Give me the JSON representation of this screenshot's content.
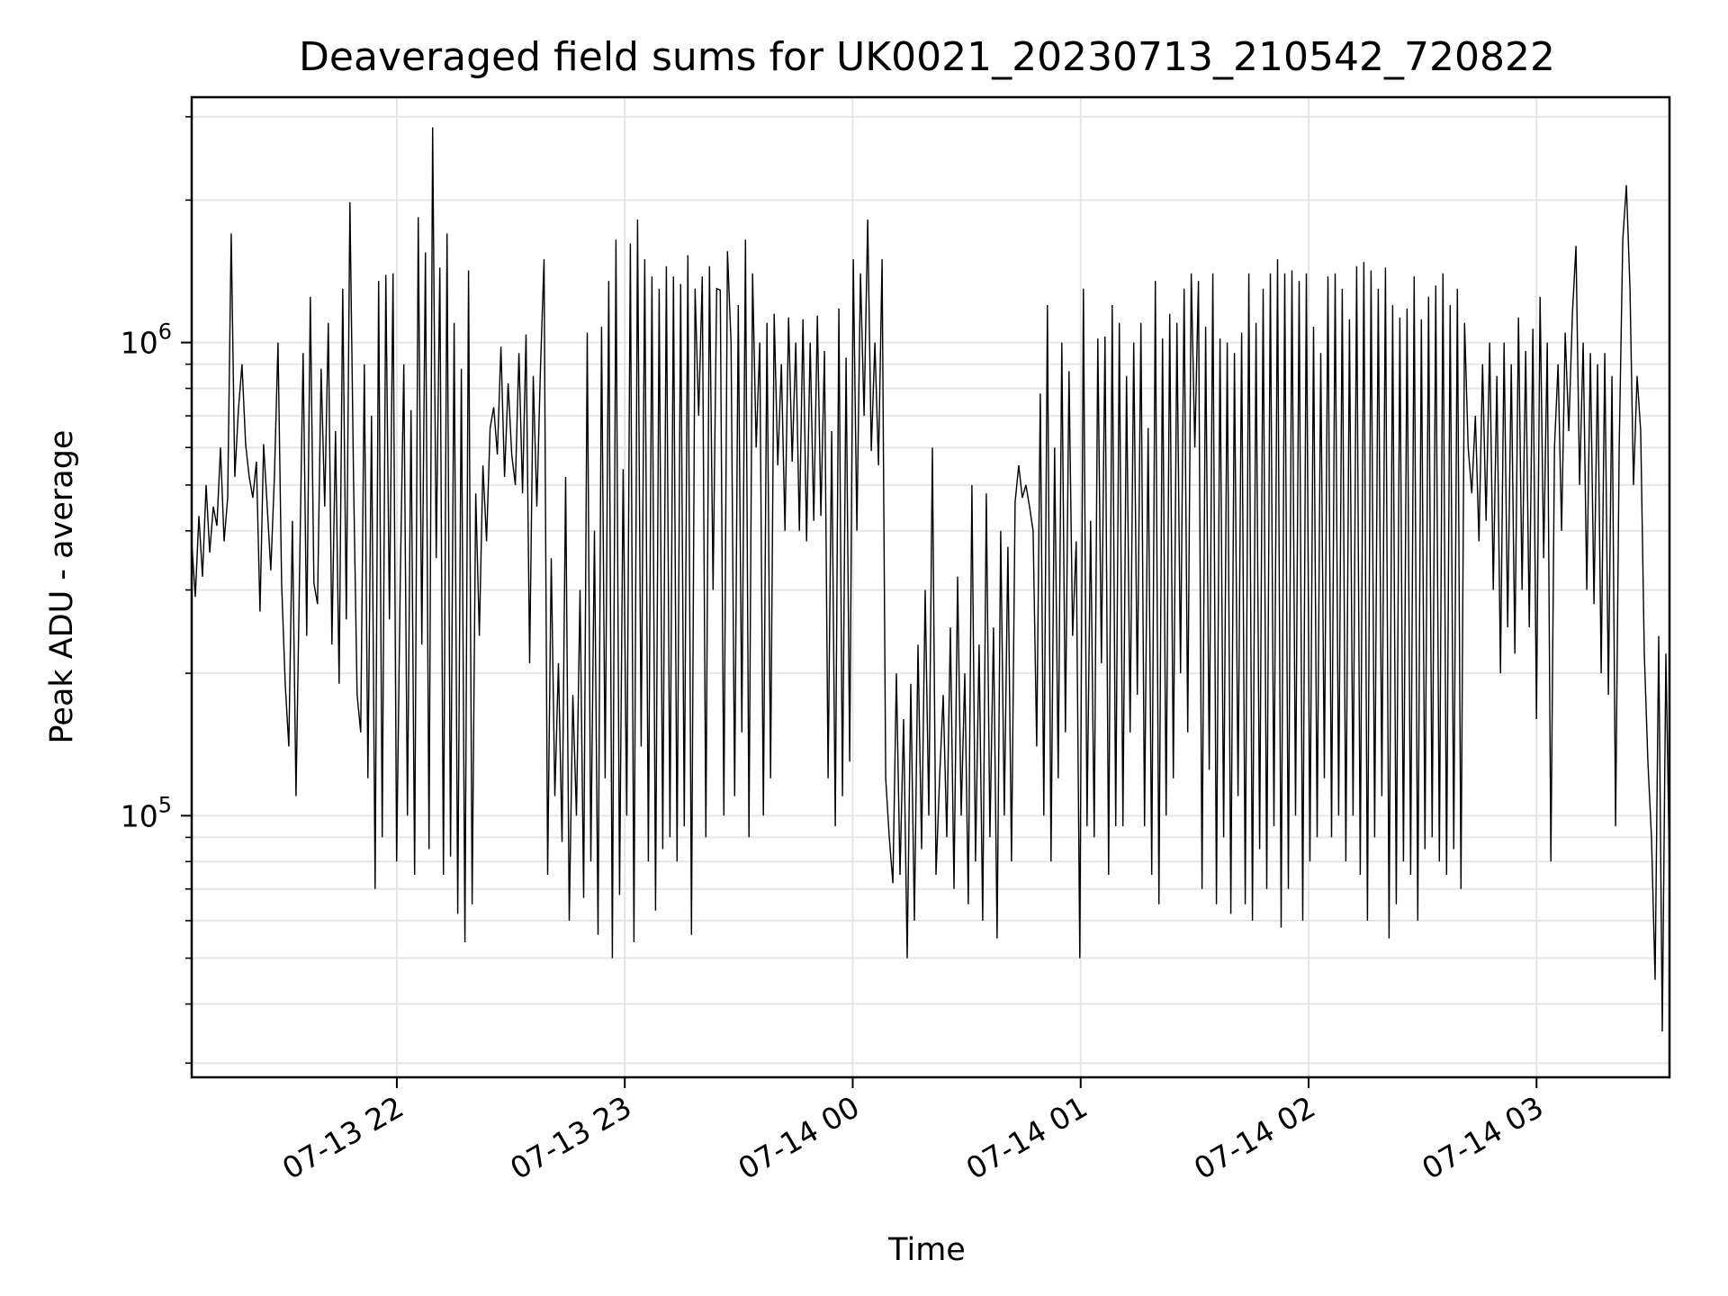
{
  "chart_data": {
    "type": "line",
    "title": "Deaveraged field sums for UK0021_20230713_210542_720822",
    "xlabel": "Time",
    "ylabel": "Peak ADU - average",
    "y_scale": "log",
    "xlim": [
      "2023-07-13 21:06",
      "2023-07-14 03:35"
    ],
    "ylim": [
      28000,
      3300000
    ],
    "grid": true,
    "line_color": "#000000",
    "grid_color": "#e6e6e6",
    "x_ticks": [
      {
        "value": "2023-07-13 22:00",
        "label": "07-13 22"
      },
      {
        "value": "2023-07-13 23:00",
        "label": "07-13 23"
      },
      {
        "value": "2023-07-14 00:00",
        "label": "07-14 00"
      },
      {
        "value": "2023-07-14 01:00",
        "label": "07-14 01"
      },
      {
        "value": "2023-07-14 02:00",
        "label": "07-14 02"
      },
      {
        "value": "2023-07-14 03:00",
        "label": "07-14 03"
      }
    ],
    "y_ticks": [
      {
        "value": 100000,
        "base": "10",
        "exp": "5"
      },
      {
        "value": 1000000,
        "base": "10",
        "exp": "6"
      }
    ],
    "series": [
      {
        "x_start": "2023-07-13 21:06",
        "x_end": "2023-07-14 03:35",
        "values": [
          380000,
          290000,
          430000,
          320000,
          500000,
          360000,
          450000,
          410000,
          600000,
          380000,
          470000,
          1700000,
          520000,
          720000,
          900000,
          610000,
          520000,
          470000,
          560000,
          270000,
          610000,
          450000,
          330000,
          520000,
          1000000,
          310000,
          190000,
          140000,
          420000,
          110000,
          330000,
          950000,
          240000,
          1250000,
          310000,
          280000,
          880000,
          450000,
          1100000,
          230000,
          650000,
          190000,
          1300000,
          260000,
          1980000,
          520000,
          180000,
          150000,
          900000,
          120000,
          700000,
          70000,
          1350000,
          90000,
          1390000,
          260000,
          1400000,
          80000,
          310000,
          900000,
          100000,
          720000,
          75000,
          1840000,
          230000,
          1550000,
          85000,
          2850000,
          350000,
          1440000,
          75000,
          1700000,
          82000,
          1100000,
          62000,
          880000,
          54000,
          1420000,
          65000,
          480000,
          240000,
          550000,
          380000,
          660000,
          730000,
          580000,
          980000,
          520000,
          820000,
          580000,
          500000,
          950000,
          480000,
          1040000,
          210000,
          850000,
          450000,
          880000,
          1500000,
          75000,
          350000,
          110000,
          210000,
          88000,
          520000,
          60000,
          180000,
          100000,
          300000,
          67000,
          1050000,
          80000,
          400000,
          56000,
          1080000,
          120000,
          1350000,
          50000,
          1650000,
          68000,
          540000,
          100000,
          1620000,
          54000,
          1820000,
          140000,
          1500000,
          80000,
          1380000,
          63000,
          1300000,
          85000,
          1450000,
          90000,
          1380000,
          80000,
          1330000,
          95000,
          1530000,
          56000,
          1300000,
          700000,
          1380000,
          90000,
          1450000,
          300000,
          1300000,
          1290000,
          100000,
          1560000,
          1000000,
          110000,
          1200000,
          150000,
          1650000,
          90000,
          1400000,
          600000,
          1000000,
          100000,
          1100000,
          120000,
          1150000,
          550000,
          900000,
          400000,
          1130000,
          560000,
          1000000,
          400000,
          1120000,
          380000,
          1000000,
          420000,
          1140000,
          430000,
          960000,
          120000,
          650000,
          95000,
          1180000,
          110000,
          930000,
          130000,
          1500000,
          400000,
          1400000,
          700000,
          1820000,
          590000,
          1000000,
          550000,
          1500000,
          120000,
          90000,
          72000,
          200000,
          75000,
          160000,
          50000,
          190000,
          60000,
          230000,
          85000,
          300000,
          100000,
          600000,
          75000,
          120000,
          180000,
          90000,
          250000,
          70000,
          320000,
          100000,
          200000,
          65000,
          500000,
          80000,
          230000,
          60000,
          480000,
          90000,
          250000,
          55000,
          400000,
          100000,
          370000,
          80000,
          460000,
          550000,
          470000,
          500000,
          450000,
          400000,
          140000,
          780000,
          100000,
          1200000,
          80000,
          600000,
          120000,
          1000000,
          150000,
          870000,
          240000,
          380000,
          50000,
          1300000,
          95000,
          420000,
          90000,
          1020000,
          210000,
          1030000,
          75000,
          1200000,
          95000,
          1100000,
          95000,
          850000,
          150000,
          1000000,
          180000,
          1100000,
          95000,
          660000,
          75000,
          1350000,
          65000,
          1020000,
          100000,
          1150000,
          120000,
          1100000,
          200000,
          1300000,
          150000,
          1400000,
          600000,
          1350000,
          70000,
          1080000,
          125000,
          1400000,
          65000,
          1020000,
          90000,
          1000000,
          62000,
          950000,
          110000,
          1050000,
          65000,
          1400000,
          60000,
          1100000,
          85000,
          1300000,
          70000,
          1400000,
          95000,
          1500000,
          58000,
          1400000,
          70000,
          1420000,
          100000,
          1350000,
          60000,
          1400000,
          80000,
          1080000,
          90000,
          950000,
          120000,
          1380000,
          90000,
          1400000,
          100000,
          1300000,
          80000,
          1120000,
          100000,
          1450000,
          75000,
          1480000,
          60000,
          1420000,
          90000,
          1300000,
          110000,
          1440000,
          55000,
          1200000,
          65000,
          1130000,
          80000,
          1180000,
          75000,
          1380000,
          60000,
          1120000,
          85000,
          1250000,
          90000,
          1320000,
          80000,
          1400000,
          75000,
          1200000,
          85000,
          1300000,
          70000,
          1100000,
          600000,
          480000,
          700000,
          380000,
          900000,
          420000,
          1000000,
          300000,
          850000,
          200000,
          1000000,
          250000,
          900000,
          220000,
          1130000,
          300000,
          960000,
          250000,
          1070000,
          160000,
          1250000,
          350000,
          1000000,
          80000,
          600000,
          900000,
          400000,
          1050000,
          650000,
          1150000,
          1600000,
          500000,
          1000000,
          300000,
          950000,
          280000,
          900000,
          200000,
          950000,
          180000,
          850000,
          95000,
          600000,
          1650000,
          2150000,
          1300000,
          500000,
          850000,
          650000,
          220000,
          130000,
          90000,
          45000,
          240000,
          35000,
          220000,
          75000
        ]
      }
    ]
  }
}
